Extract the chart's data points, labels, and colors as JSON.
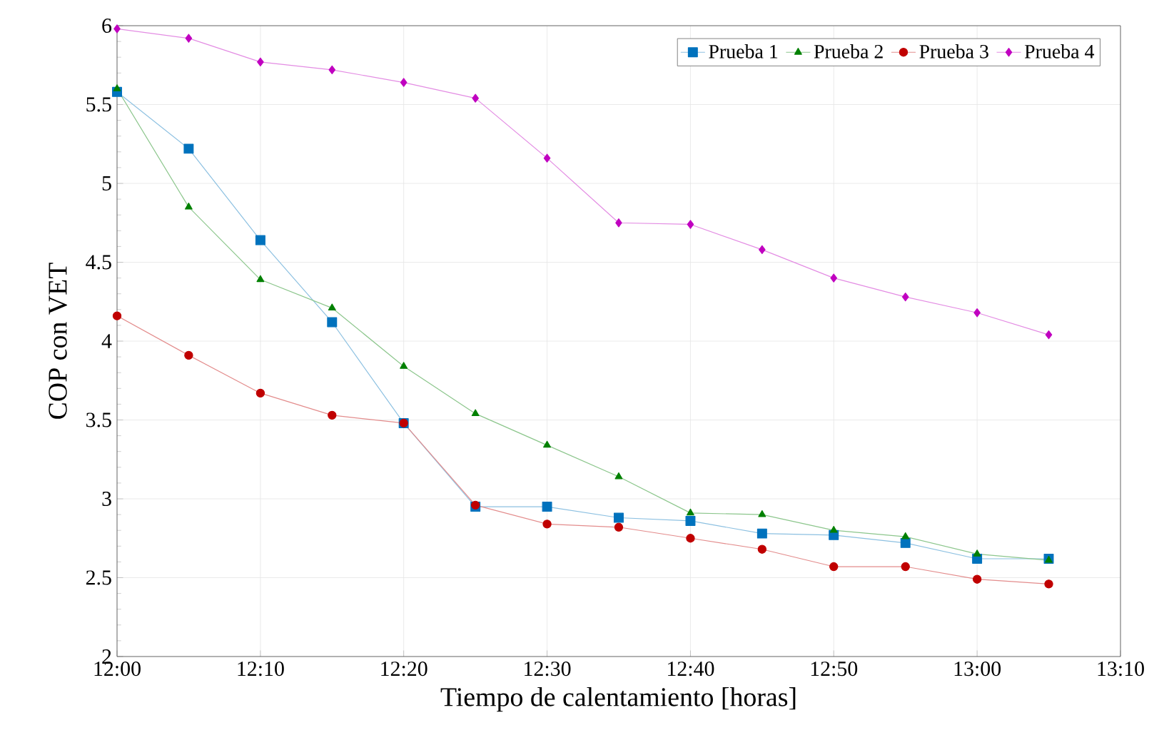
{
  "chart_data": {
    "type": "line",
    "xlabel": "Tiempo de calentamiento [horas]",
    "ylabel": "COP con VET",
    "x": [
      12,
      12.0833,
      12.1667,
      12.25,
      12.3333,
      12.4167,
      12.5,
      12.5833,
      12.6667,
      12.75,
      12.8333,
      12.9167,
      13,
      13.0833
    ],
    "series": [
      {
        "name": "Prueba 1",
        "color": "#0072bd",
        "marker": "square",
        "values": [
          5.58,
          5.22,
          4.64,
          4.12,
          3.48,
          2.95,
          2.95,
          2.88,
          2.86,
          2.78,
          2.77,
          2.72,
          2.62,
          2.62
        ]
      },
      {
        "name": "Prueba 2",
        "color": "#008000",
        "marker": "triangle",
        "values": [
          5.6,
          4.85,
          4.39,
          4.21,
          3.84,
          3.54,
          3.34,
          3.14,
          2.91,
          2.9,
          2.8,
          2.76,
          2.65,
          2.61
        ]
      },
      {
        "name": "Prueba 3",
        "color": "#c00000",
        "marker": "circle",
        "values": [
          4.16,
          3.91,
          3.67,
          3.53,
          3.48,
          2.96,
          2.84,
          2.82,
          2.75,
          2.68,
          2.57,
          2.57,
          2.49,
          2.46
        ]
      },
      {
        "name": "Prueba 4",
        "color": "#c000c0",
        "marker": "diamond",
        "values": [
          5.98,
          5.92,
          5.77,
          5.72,
          5.64,
          5.54,
          5.16,
          4.75,
          4.74,
          4.58,
          4.4,
          4.28,
          4.18,
          4.04
        ]
      }
    ],
    "xlim": [
      12,
      13.1667
    ],
    "xticks": [
      {
        "value": 12,
        "label": "12:00"
      },
      {
        "value": 12.1667,
        "label": "12:10"
      },
      {
        "value": 12.3333,
        "label": "12:20"
      },
      {
        "value": 12.5,
        "label": "12:30"
      },
      {
        "value": 12.6667,
        "label": "12:40"
      },
      {
        "value": 12.8333,
        "label": "12:50"
      },
      {
        "value": 13,
        "label": "13:00"
      },
      {
        "value": 13.1667,
        "label": "13:10"
      }
    ],
    "ylim": [
      2,
      6
    ],
    "yticks": [
      2,
      2.5,
      3,
      3.5,
      4,
      4.5,
      5,
      5.5,
      6
    ],
    "grid": true,
    "legend": "top right",
    "line_style": "solid"
  }
}
